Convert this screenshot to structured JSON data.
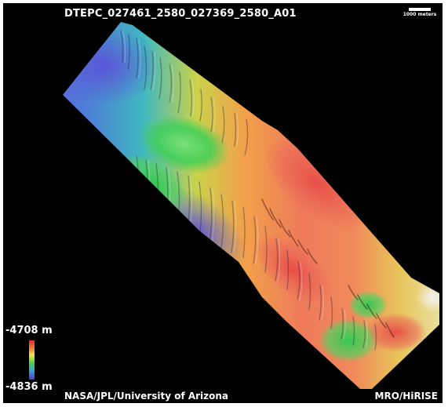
{
  "header": {
    "title": "DTEPC_027461_2580_027369_2580_A01"
  },
  "scale_bar": {
    "label": "1000 meters"
  },
  "legend": {
    "max_label": "-4708 m",
    "min_label": "-4836 m",
    "colors": [
      "#e02b25",
      "#f07b3a",
      "#f3e64a",
      "#48d24a",
      "#3aa0d8",
      "#4b3bc8"
    ]
  },
  "credits": {
    "left": "NASA/JPL/University of Arizona",
    "right": "MRO/HiRISE"
  },
  "colors": {
    "background": "#000000",
    "text": "#ffffff"
  }
}
